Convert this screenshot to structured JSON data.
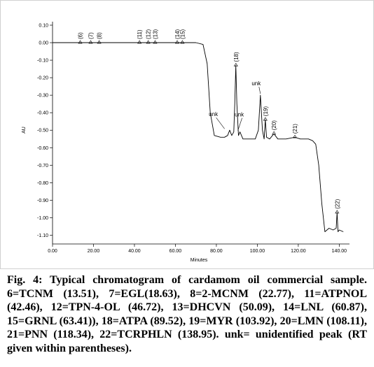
{
  "chart_data": {
    "type": "line",
    "xlabel": "Minutes",
    "ylabel": "AU",
    "xlim": [
      0,
      145
    ],
    "ylim": [
      -1.15,
      0.12
    ],
    "x_ticks": [
      "0.00",
      "20.00",
      "40.00",
      "60.00",
      "80.00",
      "100.00",
      "120.00",
      "140.00"
    ],
    "x_tick_values": [
      0,
      20,
      40,
      60,
      80,
      100,
      120,
      140
    ],
    "y_ticks": [
      "0.10",
      "0.00",
      "-0.10",
      "-0.20",
      "-0.30",
      "-0.40",
      "-0.50",
      "-0.60",
      "-0.70",
      "-0.80",
      "-0.90",
      "-1.00",
      "-1.10"
    ],
    "y_tick_values": [
      0.1,
      0.0,
      -0.1,
      -0.2,
      -0.3,
      -0.4,
      -0.5,
      -0.6,
      -0.7,
      -0.8,
      -0.9,
      -1.0,
      -1.1
    ],
    "series": [
      {
        "x": [
          0,
          5,
          10,
          13.5,
          18.6,
          22.8,
          30,
          40,
          42.5,
          46.7,
          50.1,
          55,
          60.9,
          63.4,
          70,
          73.5,
          75.5,
          77,
          79,
          82,
          84,
          85.5,
          86.5,
          87.5,
          88.5,
          89,
          89.5,
          90,
          90.8,
          91.5,
          93,
          96,
          99,
          100.5,
          101.5,
          102.5,
          103.3,
          103.9,
          104.5,
          106,
          108.1,
          110,
          114,
          118.3,
          121,
          125,
          127,
          128.5,
          130,
          131.5,
          133,
          135,
          137,
          138.5,
          138.95,
          139.4,
          140,
          142
        ],
        "values": [
          0.0,
          0.0,
          0.0,
          0.0,
          0.0,
          0.0,
          0.0,
          0.0,
          0.0,
          0.0,
          0.0,
          0.0,
          0.0,
          0.0,
          0.0,
          -0.01,
          -0.12,
          -0.4,
          -0.53,
          -0.54,
          -0.54,
          -0.53,
          -0.5,
          -0.53,
          -0.51,
          -0.35,
          -0.13,
          -0.35,
          -0.53,
          -0.51,
          -0.55,
          -0.55,
          -0.55,
          -0.5,
          -0.3,
          -0.5,
          -0.55,
          -0.44,
          -0.54,
          -0.55,
          -0.52,
          -0.55,
          -0.55,
          -0.54,
          -0.55,
          -0.55,
          -0.56,
          -0.58,
          -0.7,
          -0.92,
          -1.08,
          -1.06,
          -1.07,
          -1.06,
          -0.97,
          -1.08,
          -1.07,
          -1.08
        ]
      }
    ],
    "peak_labels": [
      {
        "text": "(6)",
        "x": 13.51,
        "y": 0.0
      },
      {
        "text": "(7)",
        "x": 18.63,
        "y": 0.0
      },
      {
        "text": "(8)",
        "x": 22.77,
        "y": 0.0
      },
      {
        "text": "(11)",
        "x": 42.46,
        "y": 0.0
      },
      {
        "text": "(12)",
        "x": 46.72,
        "y": 0.0
      },
      {
        "text": "(13)",
        "x": 50.09,
        "y": 0.0
      },
      {
        "text": "(14)",
        "x": 60.87,
        "y": 0.0
      },
      {
        "text": "(15)",
        "x": 63.41,
        "y": 0.0
      },
      {
        "text": "(18)",
        "x": 89.52,
        "y": -0.13
      },
      {
        "text": "(19)",
        "x": 103.92,
        "y": -0.44
      },
      {
        "text": "(20)",
        "x": 108.11,
        "y": -0.52
      },
      {
        "text": "(21)",
        "x": 118.34,
        "y": -0.54
      },
      {
        "text": "(22)",
        "x": 138.95,
        "y": -0.97
      }
    ],
    "unk_labels": [
      {
        "text": "unk",
        "x": 101.5,
        "y": -0.3
      },
      {
        "text": "unk",
        "x": 84.0,
        "y": -0.5
      },
      {
        "text": "unk",
        "x": 90.5,
        "y": -0.51
      }
    ]
  },
  "caption": {
    "fig_label": "Fig. 4: ",
    "title": "Typical chromatogram of cardamom oil commercial sample.",
    "body": "6=TCNM (13.51), 7=EGL(18.63), 8=2-MCNM (22.77), 11=ATPNOL (42.46), 12=TPN-4-OL (46.72), 13=DHCVN (50.09), 14=LNL (60.87), 15=GRNL (63.41)), 18=ATPA (89.52), 19=MYR (103.92), 20=LMN (108.11), 21=PNN (118.34), 22=TCRPHLN (138.95). unk= unidentified peak (RT given within parentheses)."
  }
}
